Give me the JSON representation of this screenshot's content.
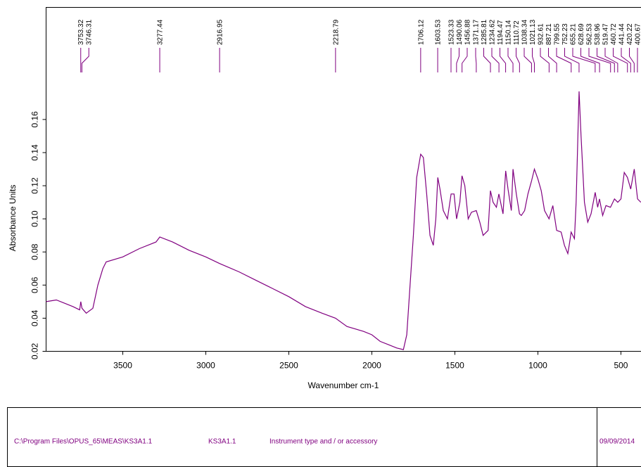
{
  "chart_data": {
    "type": "line",
    "xlabel": "Wavenumber cm-1",
    "ylabel": "Absorbance Units",
    "color": "#800080",
    "xlim": [
      3962,
      377
    ],
    "ylim": [
      0.02,
      0.2277
    ],
    "xticks": [
      3500,
      3000,
      2500,
      2000,
      1500,
      1000,
      500
    ],
    "yticks": [
      0.02,
      0.04,
      0.06,
      0.08,
      {
        "value": 0.1,
        "label": "0.10"
      },
      0.12,
      0.14,
      0.16
    ],
    "peaks": [
      3753.32,
      3746.31,
      3277.44,
      2916.95,
      2218.79,
      1706.12,
      1603.53,
      1523.33,
      1490.06,
      1456.88,
      1371.17,
      1285.81,
      1234.62,
      1194.47,
      1150.14,
      1110.72,
      1038.34,
      1021.13,
      932.61,
      887.21,
      799.55,
      752.23,
      655.21,
      628.69,
      562.53,
      538.96,
      519.47,
      460.72,
      441.44,
      420.22,
      400.67
    ],
    "x": [
      3962,
      3900,
      3850,
      3800,
      3760,
      3753,
      3746,
      3720,
      3680,
      3650,
      3620,
      3600,
      3500,
      3400,
      3300,
      3277,
      3200,
      3100,
      3000,
      2917,
      2800,
      2700,
      2600,
      2500,
      2400,
      2300,
      2219,
      2150,
      2050,
      2000,
      1950,
      1900,
      1850,
      1810,
      1790,
      1770,
      1750,
      1730,
      1706,
      1690,
      1670,
      1650,
      1630,
      1615,
      1603,
      1590,
      1570,
      1545,
      1523,
      1505,
      1490,
      1470,
      1457,
      1440,
      1420,
      1400,
      1371,
      1350,
      1330,
      1300,
      1286,
      1270,
      1250,
      1235,
      1210,
      1194,
      1180,
      1160,
      1150,
      1130,
      1111,
      1100,
      1080,
      1060,
      1038,
      1021,
      1000,
      980,
      960,
      933,
      910,
      887,
      860,
      840,
      820,
      810,
      800,
      780,
      770,
      752,
      740,
      720,
      700,
      680,
      655,
      640,
      629,
      610,
      590,
      563,
      539,
      519,
      500,
      480,
      461,
      441,
      420,
      400,
      380
    ],
    "values": [
      0.05,
      0.051,
      0.049,
      0.047,
      0.045,
      0.05,
      0.046,
      0.043,
      0.046,
      0.06,
      0.07,
      0.074,
      0.077,
      0.082,
      0.086,
      0.089,
      0.086,
      0.081,
      0.077,
      0.073,
      0.068,
      0.063,
      0.058,
      0.053,
      0.047,
      0.043,
      0.04,
      0.035,
      0.032,
      0.03,
      0.026,
      0.024,
      0.022,
      0.021,
      0.03,
      0.06,
      0.09,
      0.125,
      0.139,
      0.137,
      0.115,
      0.09,
      0.084,
      0.1,
      0.125,
      0.118,
      0.105,
      0.1,
      0.115,
      0.115,
      0.1,
      0.11,
      0.126,
      0.12,
      0.1,
      0.104,
      0.105,
      0.098,
      0.09,
      0.093,
      0.117,
      0.11,
      0.107,
      0.115,
      0.103,
      0.129,
      0.118,
      0.105,
      0.13,
      0.115,
      0.103,
      0.102,
      0.105,
      0.115,
      0.123,
      0.13,
      0.124,
      0.117,
      0.105,
      0.1,
      0.108,
      0.093,
      0.092,
      0.084,
      0.079,
      0.085,
      0.092,
      0.088,
      0.11,
      0.177,
      0.15,
      0.11,
      0.098,
      0.103,
      0.116,
      0.107,
      0.112,
      0.102,
      0.108,
      0.107,
      0.112,
      0.11,
      0.112,
      0.128,
      0.125,
      0.118,
      0.13,
      0.112,
      0.11
    ]
  },
  "footer": {
    "fields": [
      "C:\\Program Files\\OPUS_65\\MEAS\\KS3A1.1",
      "KS3A1.1",
      "Instrument type and / or accessory",
      "09/09/2014"
    ]
  }
}
